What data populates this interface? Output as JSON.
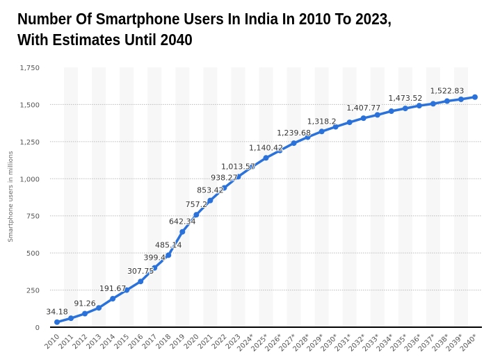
{
  "chart_data": {
    "type": "line",
    "title": "Number Of Smartphone Users In India In 2010 To 2023, With Estimates Until 2040",
    "title_lines": [
      "Number Of Smartphone Users In India In 2010 To 2023,",
      "With Estimates Until 2040"
    ],
    "ylabel": "Smartphone users in millions",
    "xlabel": "",
    "ylim": [
      0,
      1750
    ],
    "yticks": [
      0,
      250,
      500,
      750,
      1000,
      1250,
      1500,
      1750
    ],
    "ytick_labels": [
      "0",
      "250",
      "500",
      "750",
      "1,000",
      "1,250",
      "1,500",
      "1,750"
    ],
    "grid": true,
    "color": "#2a72d9",
    "categories": [
      "2010",
      "2011",
      "2012",
      "2013",
      "2014",
      "2015",
      "2016",
      "2017",
      "2018",
      "2019",
      "2020",
      "2021",
      "2022",
      "2023",
      "2024*",
      "2025*",
      "2026*",
      "2027*",
      "2028*",
      "2029*",
      "2030*",
      "2031*",
      "2032*",
      "2033*",
      "2034*",
      "2035*",
      "2036*",
      "2037*",
      "2038*",
      "2039*",
      "2040*"
    ],
    "values": [
      34.18,
      60,
      91.26,
      130,
      191.67,
      250,
      307.75,
      399.4,
      485.14,
      642.34,
      757.2,
      853.42,
      938.27,
      1013.57,
      1080,
      1140.42,
      1190,
      1239.68,
      1280,
      1318.2,
      1350,
      1380,
      1407.77,
      1430,
      1455,
      1473.52,
      1492,
      1505,
      1522.83,
      1535,
      1550
    ],
    "data_labels": [
      {
        "category": "2010",
        "text": "34.18"
      },
      {
        "category": "2012",
        "text": "91.26"
      },
      {
        "category": "2014",
        "text": "191.67"
      },
      {
        "category": "2016",
        "text": "307.75"
      },
      {
        "category": "2017",
        "text": "399.4"
      },
      {
        "category": "2018",
        "text": "485.14"
      },
      {
        "category": "2019",
        "text": "642.34"
      },
      {
        "category": "2020",
        "text": "757.2"
      },
      {
        "category": "2021",
        "text": "853.42"
      },
      {
        "category": "2022",
        "text": "938.27"
      },
      {
        "category": "2023",
        "text": "1,013.57"
      },
      {
        "category": "2025*",
        "text": "1,140.42"
      },
      {
        "category": "2027*",
        "text": "1,239.68"
      },
      {
        "category": "2029*",
        "text": "1,318.2"
      },
      {
        "category": "2032*",
        "text": "1,407.77"
      },
      {
        "category": "2035*",
        "text": "1,473.52"
      },
      {
        "category": "2038*",
        "text": "1,522.83"
      }
    ]
  }
}
